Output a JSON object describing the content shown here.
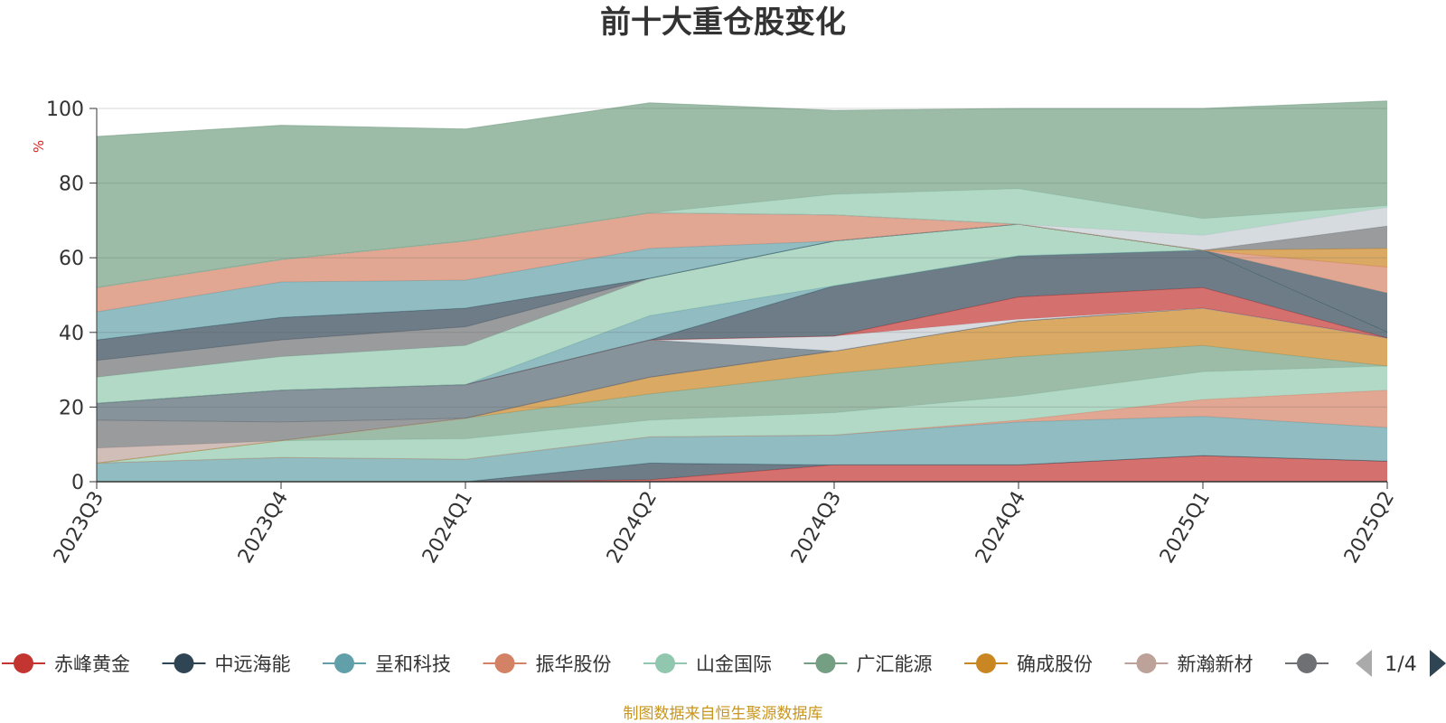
{
  "chart_data": {
    "type": "area",
    "title": "前十大重仓股变化",
    "unit_label": "%",
    "ylim": [
      0,
      100
    ],
    "y_ticks": [
      "0",
      "20",
      "40",
      "60",
      "80",
      "100"
    ],
    "categories": [
      "2023Q3",
      "2023Q4",
      "2024Q1",
      "2024Q2",
      "2024Q3",
      "2024Q4",
      "2025Q1",
      "2025Q2"
    ],
    "grid": true,
    "stacked": true,
    "series": [
      {
        "name": "赤峰黄金",
        "color": "#c23531",
        "values": [
          0,
          0,
          0,
          0.5,
          4.5,
          4.5,
          7,
          5.5
        ]
      },
      {
        "name": "中远海能",
        "color": "#2f4554",
        "values": [
          0,
          0,
          0,
          4.5,
          0,
          0,
          0,
          0
        ]
      },
      {
        "name": "呈和科技",
        "color": "#61a0a8",
        "values": [
          5,
          6.5,
          6,
          7,
          8,
          11.5,
          10.5,
          9
        ]
      },
      {
        "name": "振华股份",
        "color": "#d48265",
        "values": [
          0,
          0,
          0,
          0,
          0,
          0.5,
          4.5,
          10
        ]
      },
      {
        "name": "山金国际",
        "color": "#91c7ae",
        "values": [
          0,
          4.5,
          5.5,
          4.5,
          6,
          6.5,
          7.5,
          6.5
        ]
      },
      {
        "name": "广汇能源",
        "color": "#749f83",
        "values": [
          0,
          0,
          5.5,
          7,
          10.5,
          10.5,
          7,
          0
        ]
      },
      {
        "name": "确成股份",
        "color": "#ca8622",
        "values": [
          0,
          0,
          0,
          4.5,
          6,
          9.5,
          10,
          7.5
        ]
      },
      {
        "name": "新瀚新材",
        "color": "#bda29a",
        "values": [
          4,
          0,
          0,
          0,
          0,
          0,
          0,
          0
        ]
      },
      {
        "name": "",
        "color": "#6e7074",
        "values": [
          7.5,
          5,
          0,
          0,
          0,
          0,
          0,
          0
        ]
      },
      {
        "name": "",
        "color": "#546570",
        "values": [
          4.5,
          8.5,
          9,
          10,
          0,
          0,
          0,
          0
        ]
      },
      {
        "name": "",
        "color": "#c4ccd3",
        "values": [
          0,
          0,
          0,
          0,
          4,
          0.5,
          0,
          0
        ]
      },
      {
        "name": "",
        "color": "#c23531",
        "values": [
          0,
          0,
          0,
          0,
          0,
          6,
          5.5,
          0
        ]
      },
      {
        "name": "",
        "color": "#2f4554",
        "values": [
          0,
          0,
          0,
          0,
          13.5,
          11,
          10,
          1.5
        ]
      },
      {
        "name": "",
        "color": "#61a0a8",
        "values": [
          0,
          0,
          0,
          6.5,
          0,
          0,
          0,
          0
        ]
      },
      {
        "name": "",
        "color": "#91c7ae",
        "values": [
          7,
          9,
          10.5,
          10,
          12,
          8.5,
          0,
          0
        ]
      },
      {
        "name": "",
        "color": "#6e7074",
        "values": [
          4.5,
          4.5,
          5,
          0,
          0,
          0,
          0,
          0
        ]
      },
      {
        "name": "",
        "color": "#2f4554",
        "values": [
          5.5,
          6,
          5,
          0,
          0,
          0,
          0,
          10.5
        ]
      },
      {
        "name": "",
        "color": "#61a0a8",
        "values": [
          7.5,
          9.5,
          7.5,
          8,
          0,
          0,
          0,
          0
        ]
      },
      {
        "name": "",
        "color": "#d48265",
        "values": [
          6.5,
          6,
          10.5,
          9.5,
          7,
          0,
          0,
          7
        ]
      },
      {
        "name": "",
        "color": "#ca8622",
        "values": [
          0,
          0,
          0,
          0,
          0,
          0,
          0,
          5
        ]
      },
      {
        "name": "",
        "color": "#6e7074",
        "values": [
          0,
          0,
          0,
          0,
          0,
          0,
          0,
          6
        ]
      },
      {
        "name": "",
        "color": "#c4ccd3",
        "values": [
          0,
          0,
          0,
          0,
          0,
          0,
          4,
          5
        ]
      },
      {
        "name": "",
        "color": "#91c7ae",
        "values": [
          0,
          0,
          0,
          0,
          5.5,
          9.5,
          4.5,
          0.5
        ]
      },
      {
        "name": "",
        "color": "#749f83",
        "values": [
          40.5,
          36,
          30,
          29.5,
          22.5,
          21.5,
          29.5,
          28
        ]
      }
    ]
  },
  "legend": {
    "items": [
      {
        "label": "赤峰黄金",
        "color": "#c23531"
      },
      {
        "label": "中远海能",
        "color": "#2f4554"
      },
      {
        "label": "呈和科技",
        "color": "#61a0a8"
      },
      {
        "label": "振华股份",
        "color": "#d48265"
      },
      {
        "label": "山金国际",
        "color": "#91c7ae"
      },
      {
        "label": "广汇能源",
        "color": "#749f83"
      },
      {
        "label": "确成股份",
        "color": "#ca8622"
      },
      {
        "label": "新瀚新材",
        "color": "#bda29a"
      },
      {
        "label": "",
        "color": "#6e7074"
      }
    ],
    "page_indicator": "1/4"
  },
  "footer": {
    "source_text": "制图数据来自恒生聚源数据库"
  }
}
